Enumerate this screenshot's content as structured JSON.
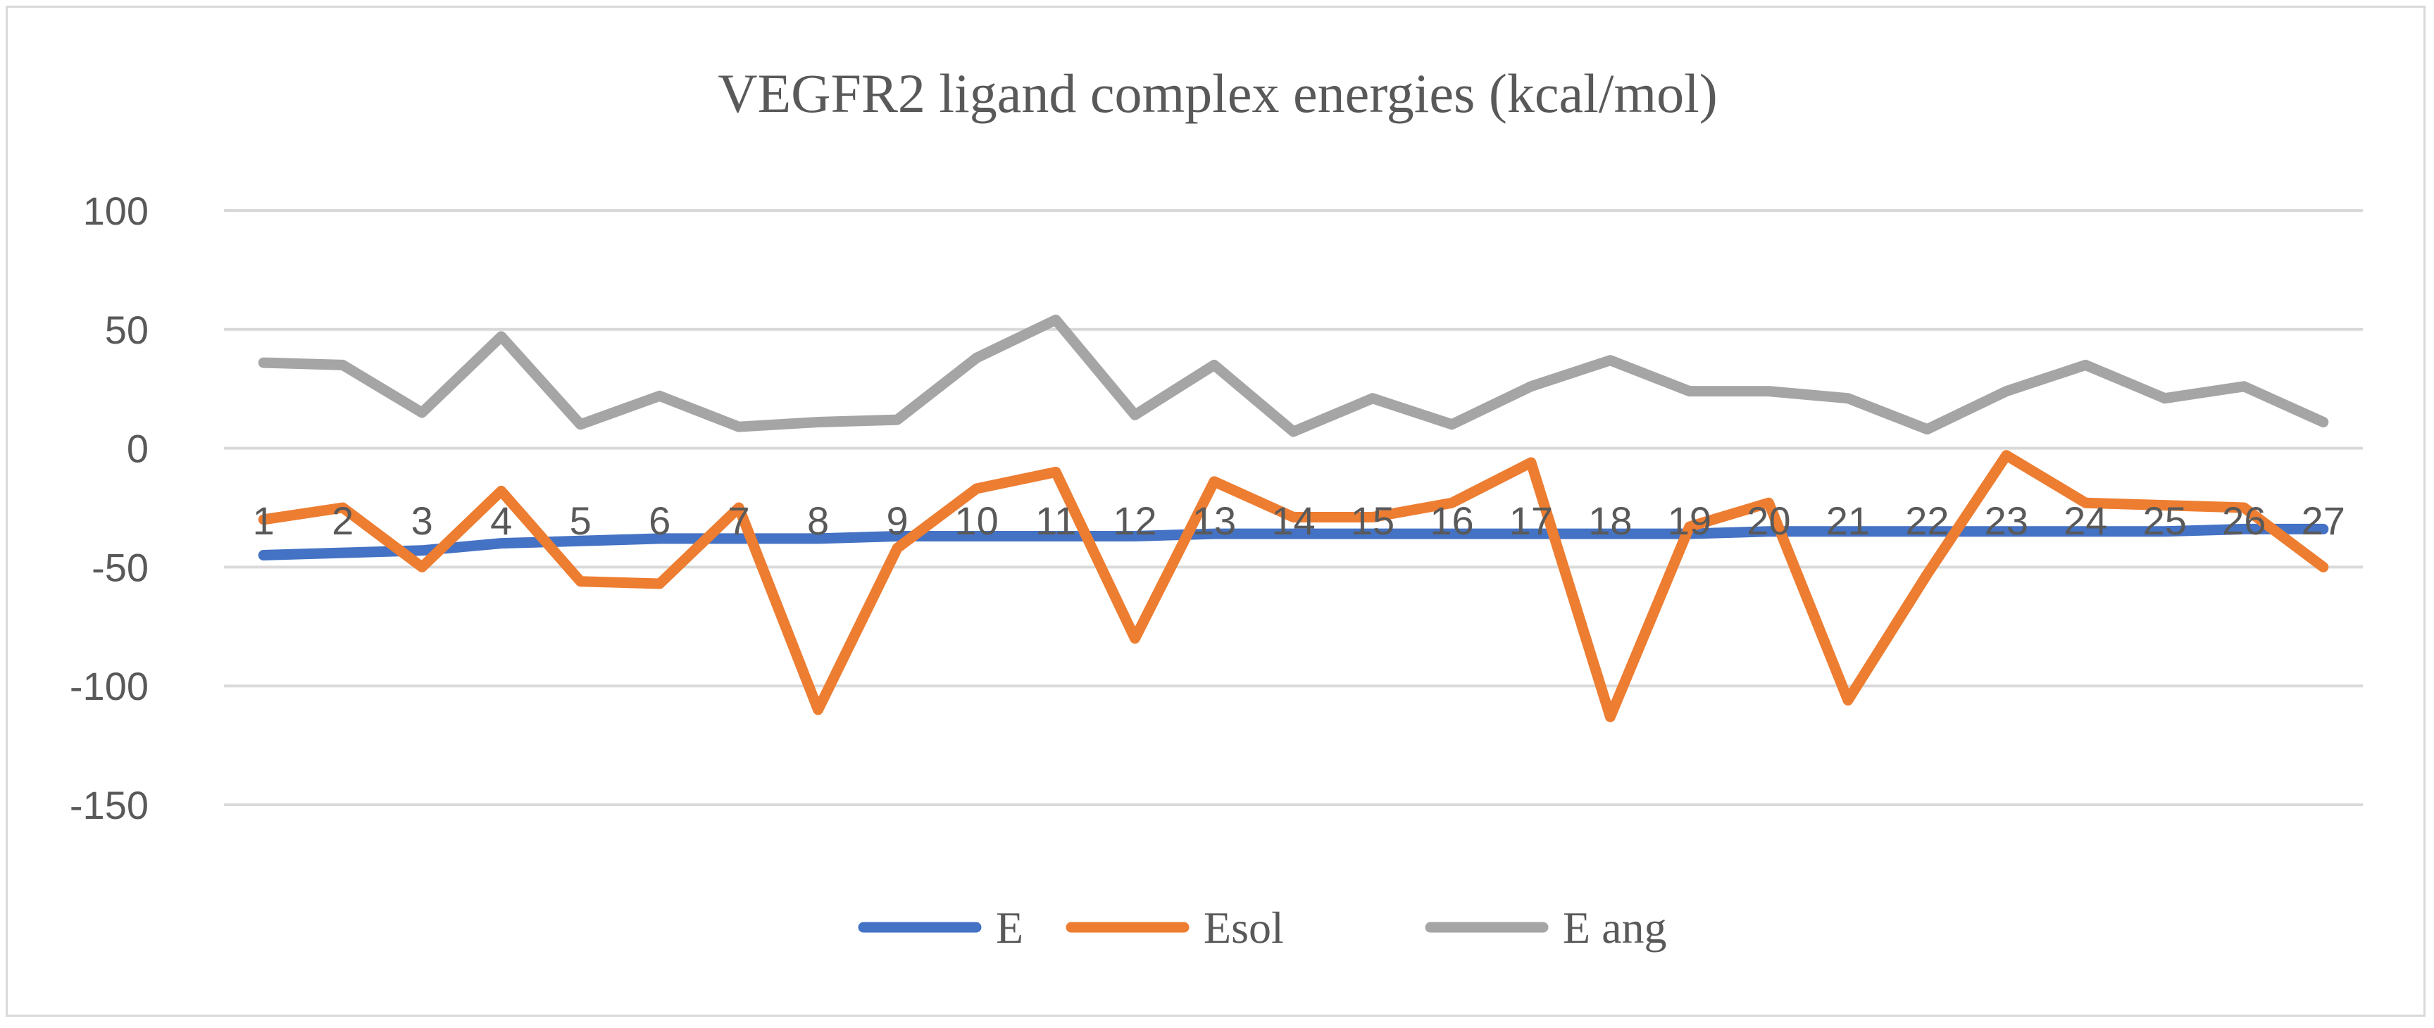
{
  "chart_data": {
    "type": "line",
    "title": "VEGFR2 ligand complex energies (kcal/mol)",
    "xlabel": "",
    "ylabel": "",
    "ylim": [
      -150,
      100
    ],
    "yticks": [
      100,
      50,
      0,
      -50,
      -100,
      -150
    ],
    "grid": true,
    "legend_position": "bottom",
    "categories": [
      "1",
      "2",
      "3",
      "4",
      "5",
      "6",
      "7",
      "8",
      "9",
      "10",
      "11",
      "12",
      "13",
      "14",
      "15",
      "16",
      "17",
      "18",
      "19",
      "20",
      "21",
      "22",
      "23",
      "24",
      "25",
      "26",
      "27"
    ],
    "series": [
      {
        "name": "E",
        "color": "#4472c4",
        "values": [
          -45,
          -44,
          -43,
          -40,
          -39,
          -38,
          -38,
          -38,
          -37,
          -37,
          -37,
          -37,
          -36,
          -36,
          -36,
          -36,
          -36,
          -36,
          -36,
          -35,
          -35,
          -35,
          -35,
          -35,
          -35,
          -34,
          -34
        ]
      },
      {
        "name": "Esol",
        "color": "#ed7d31",
        "values": [
          -30,
          -25,
          -50,
          -18,
          -56,
          -57,
          -25,
          -110,
          -42,
          -17,
          -10,
          -80,
          -14,
          -29,
          -29,
          -23,
          -6,
          -113,
          -33,
          -23,
          -106,
          -53,
          -3,
          -23,
          -24,
          -25,
          -50
        ]
      },
      {
        "name": "E ang",
        "color": "#a5a5a5",
        "values": [
          36,
          35,
          15,
          47,
          10,
          22,
          9,
          11,
          12,
          38,
          54,
          14,
          35,
          7,
          21,
          10,
          26,
          37,
          24,
          24,
          21,
          8,
          24,
          35,
          21,
          26,
          11
        ]
      }
    ]
  }
}
